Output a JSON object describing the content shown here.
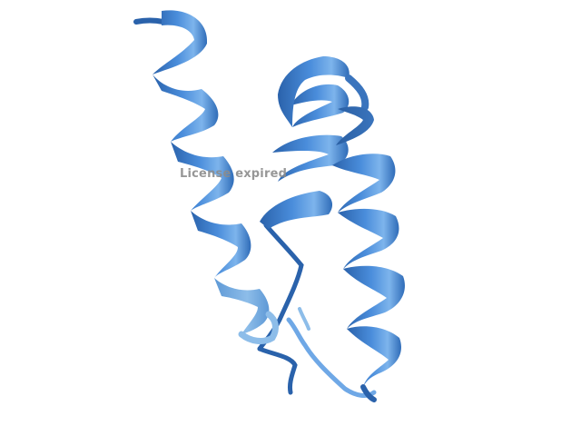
{
  "watermark": {
    "text": "License expired",
    "color": "#8c8c8c"
  },
  "structure": {
    "representation": "cartoon",
    "helix_count": 3,
    "colors": {
      "base": "#3d7cc9",
      "light": "#6fa8e6",
      "dark": "#1f4f8f",
      "highlight": "#b9d7f7"
    }
  }
}
